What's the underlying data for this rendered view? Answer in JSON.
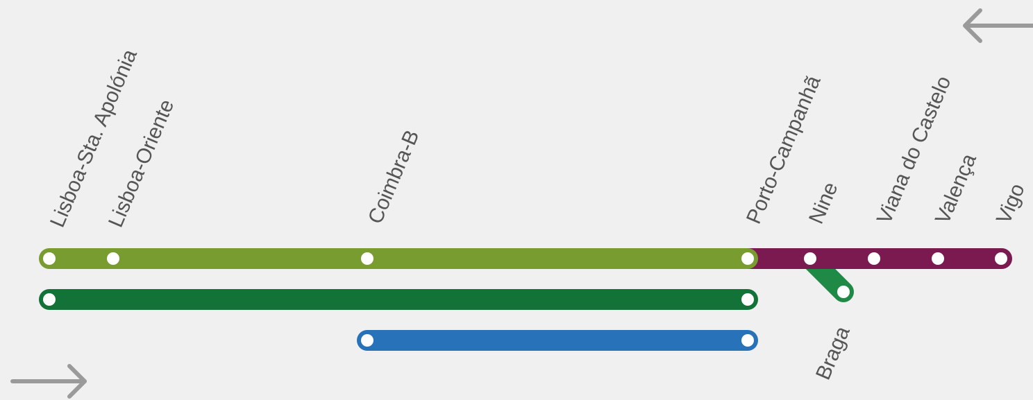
{
  "colors": {
    "background": "#f0f0f0",
    "label_text": "#555555",
    "arrow": "#9a9a9a",
    "station_dot": "#ffffff",
    "line_lime_green": "#789c30",
    "line_dark_green": "#127237",
    "line_blue": "#2772b8",
    "line_purple": "#7a1a50",
    "line_braga_green": "#1f8a45"
  },
  "stations": {
    "lisboa_sta_apolonia": "Lisboa-Sta. Apolónia",
    "lisboa_oriente": "Lisboa-Oriente",
    "coimbra_b": "Coimbra-B",
    "porto_campanha": "Porto-Campanhã",
    "nine": "Nine",
    "viana_do_castelo": "Viana do Castelo",
    "valenca": "Valença",
    "vigo": "Vigo",
    "braga": "Braga"
  },
  "icons": {
    "direction_left": "arrow-left-icon",
    "direction_right": "arrow-right-icon"
  }
}
